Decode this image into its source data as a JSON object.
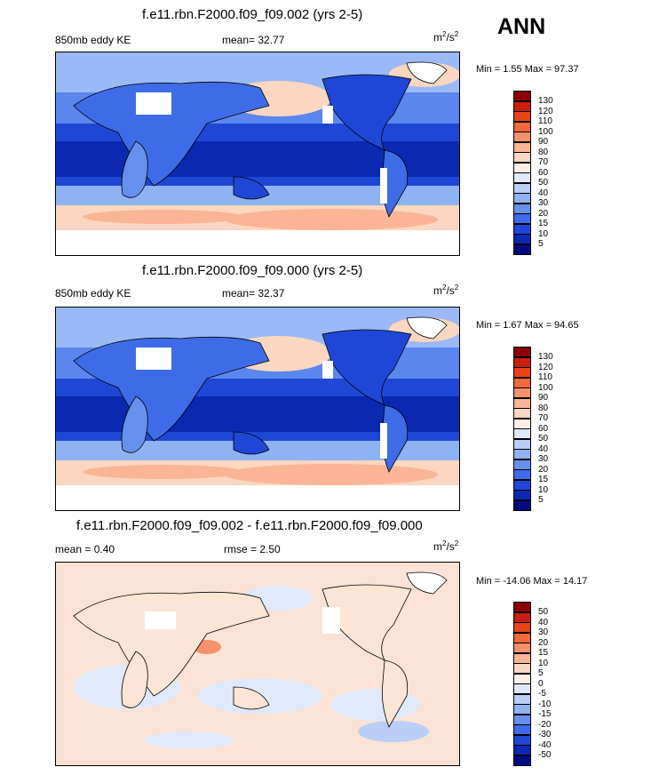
{
  "season": "ANN",
  "panels": [
    {
      "title": "f.e11.rbn.F2000.f09_f09.002 (yrs 2-5)",
      "left_label": "850mb eddy KE",
      "center_label": "mean=  32.77",
      "units_base": "m",
      "units_sup": "2",
      "units_mid": "/s",
      "units_sup2": "2",
      "minmax": "Min =   1.55 Max =  97.37",
      "colorbar": {
        "labels": [
          "130",
          "120",
          "110",
          "100",
          "90",
          "80",
          "70",
          "60",
          "50",
          "40",
          "30",
          "20",
          "15",
          "10",
          "5"
        ],
        "colors": [
          "#8b0000",
          "#c81e0a",
          "#e8431a",
          "#f46a3a",
          "#f7926a",
          "#f9b595",
          "#fbd6c0",
          "#fff0e5",
          "#dfe9fb",
          "#b9cff8",
          "#8fb2f3",
          "#6690ee",
          "#3e6ce8",
          "#1f47d6",
          "#0a28b0",
          "#000a80"
        ]
      }
    },
    {
      "title": "f.e11.rbn.F2000.f09_f09.000 (yrs 2-5)",
      "left_label": "850mb eddy KE",
      "center_label": "mean=  32.37",
      "units_base": "m",
      "units_sup": "2",
      "units_mid": "/s",
      "units_sup2": "2",
      "minmax": "Min =   1.67 Max =  94.65",
      "colorbar": {
        "labels": [
          "130",
          "120",
          "110",
          "100",
          "90",
          "80",
          "70",
          "60",
          "50",
          "40",
          "30",
          "20",
          "15",
          "10",
          "5"
        ],
        "colors": [
          "#8b0000",
          "#c81e0a",
          "#e8431a",
          "#f46a3a",
          "#f7926a",
          "#f9b595",
          "#fbd6c0",
          "#fff0e5",
          "#dfe9fb",
          "#b9cff8",
          "#8fb2f3",
          "#6690ee",
          "#3e6ce8",
          "#1f47d6",
          "#0a28b0",
          "#000a80"
        ]
      }
    },
    {
      "title": "f.e11.rbn.F2000.f09_f09.002 - f.e11.rbn.F2000.f09_f09.000",
      "left_label": "mean =   0.40",
      "center_label": "rmse =   2.50",
      "units_base": "m",
      "units_sup": "2",
      "units_mid": "/s",
      "units_sup2": "2",
      "minmax": "Min = -14.06 Max =  14.17",
      "colorbar": {
        "labels": [
          "50",
          "40",
          "30",
          "20",
          "15",
          "10",
          "5",
          "0",
          "-5",
          "-10",
          "-15",
          "-20",
          "-30",
          "-40",
          "-50"
        ],
        "colors": [
          "#8b0000",
          "#c81e0a",
          "#e8431a",
          "#f46a3a",
          "#f7926a",
          "#f9b595",
          "#fbd6c0",
          "#fff0e5",
          "#dfe9fb",
          "#b9cff8",
          "#8fb2f3",
          "#6690ee",
          "#3e6ce8",
          "#1f47d6",
          "#0a28b0",
          "#000a80"
        ]
      }
    }
  ]
}
